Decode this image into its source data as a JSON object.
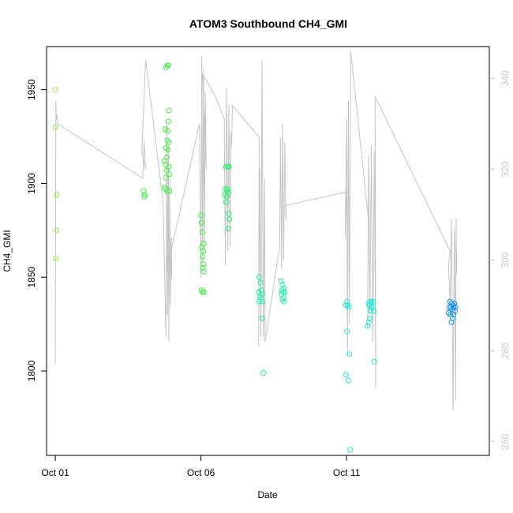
{
  "chart_data": {
    "type": "scatter",
    "title": "ATOM3 Southbound CH4_GMI",
    "xlabel": "Date",
    "ylabel": "CH4_GMI",
    "ylabel_right": "",
    "xlim": [
      -0.3,
      14.9
    ],
    "ylim": [
      1755,
      1973
    ],
    "ylim_right": [
      257,
      347
    ],
    "x_ticks": [
      {
        "value": 0,
        "label": "Oct 01"
      },
      {
        "value": 5,
        "label": "Oct 06"
      },
      {
        "value": 10,
        "label": "Oct 11"
      }
    ],
    "y_ticks": [
      {
        "value": 1800,
        "label": "1800"
      },
      {
        "value": 1850,
        "label": "1850"
      },
      {
        "value": 1900,
        "label": "1900"
      },
      {
        "value": 1950,
        "label": "1950"
      }
    ],
    "y_ticks_right": [
      {
        "value": 260,
        "label": "260"
      },
      {
        "value": 280,
        "label": "280"
      },
      {
        "value": 300,
        "label": "300"
      },
      {
        "value": 320,
        "label": "320"
      },
      {
        "value": 340,
        "label": "340"
      }
    ],
    "grid": false,
    "legend": "none",
    "colors": {
      "line": "#c4c4c4",
      "day1": "#8fef3a",
      "day2": "#3ef03e",
      "day3": "#2cf06a",
      "day4": "#20f0a8",
      "day5": "#1ee8d8",
      "day6": "#1ab8f0",
      "day7": "#1a90f0"
    },
    "points": [
      {
        "x": 0.0,
        "y": 1950,
        "c": "day1"
      },
      {
        "x": 0.0,
        "y": 1930,
        "c": "day1"
      },
      {
        "x": 0.05,
        "y": 1894,
        "c": "day1"
      },
      {
        "x": 0.03,
        "y": 1875,
        "c": "day1"
      },
      {
        "x": 0.02,
        "y": 1860,
        "c": "day1"
      },
      {
        "x": 3.03,
        "y": 1896,
        "c": "day2"
      },
      {
        "x": 3.06,
        "y": 1893,
        "c": "day2"
      },
      {
        "x": 3.08,
        "y": 1894,
        "c": "day2"
      },
      {
        "x": 3.8,
        "y": 1962,
        "c": "day2"
      },
      {
        "x": 3.85,
        "y": 1963,
        "c": "day2"
      },
      {
        "x": 3.88,
        "y": 1963,
        "c": "day2"
      },
      {
        "x": 3.9,
        "y": 1939,
        "c": "day2"
      },
      {
        "x": 3.88,
        "y": 1933,
        "c": "day2"
      },
      {
        "x": 3.78,
        "y": 1929,
        "c": "day2"
      },
      {
        "x": 3.86,
        "y": 1928,
        "c": "day2"
      },
      {
        "x": 3.84,
        "y": 1923,
        "c": "day2"
      },
      {
        "x": 3.9,
        "y": 1922,
        "c": "day2"
      },
      {
        "x": 3.8,
        "y": 1919,
        "c": "day2"
      },
      {
        "x": 3.87,
        "y": 1918,
        "c": "day2"
      },
      {
        "x": 3.82,
        "y": 1914,
        "c": "day2"
      },
      {
        "x": 3.74,
        "y": 1912,
        "c": "day2"
      },
      {
        "x": 3.79,
        "y": 1910,
        "c": "day2"
      },
      {
        "x": 3.9,
        "y": 1909,
        "c": "day2"
      },
      {
        "x": 3.83,
        "y": 1907,
        "c": "day2"
      },
      {
        "x": 3.91,
        "y": 1905,
        "c": "day2"
      },
      {
        "x": 3.8,
        "y": 1903,
        "c": "day2"
      },
      {
        "x": 3.76,
        "y": 1898,
        "c": "day2"
      },
      {
        "x": 3.84,
        "y": 1896,
        "c": "day2"
      },
      {
        "x": 3.92,
        "y": 1896,
        "c": "day2"
      },
      {
        "x": 3.78,
        "y": 1897,
        "c": "day2"
      },
      {
        "x": 5.0,
        "y": 1883,
        "c": "day2"
      },
      {
        "x": 5.02,
        "y": 1879,
        "c": "day2"
      },
      {
        "x": 5.05,
        "y": 1874,
        "c": "day2"
      },
      {
        "x": 5.1,
        "y": 1868,
        "c": "day2"
      },
      {
        "x": 5.08,
        "y": 1864,
        "c": "day2"
      },
      {
        "x": 5.03,
        "y": 1866,
        "c": "day2"
      },
      {
        "x": 5.06,
        "y": 1861,
        "c": "day2"
      },
      {
        "x": 5.09,
        "y": 1857,
        "c": "day2"
      },
      {
        "x": 5.1,
        "y": 1853,
        "c": "day2"
      },
      {
        "x": 5.07,
        "y": 1855,
        "c": "day2"
      },
      {
        "x": 5.02,
        "y": 1843,
        "c": "day2"
      },
      {
        "x": 5.06,
        "y": 1842,
        "c": "day2"
      },
      {
        "x": 5.1,
        "y": 1842,
        "c": "day2"
      },
      {
        "x": 5.86,
        "y": 1909,
        "c": "day3"
      },
      {
        "x": 5.92,
        "y": 1909,
        "c": "day3"
      },
      {
        "x": 5.96,
        "y": 1909,
        "c": "day3"
      },
      {
        "x": 5.84,
        "y": 1897,
        "c": "day3"
      },
      {
        "x": 5.9,
        "y": 1896,
        "c": "day3"
      },
      {
        "x": 5.95,
        "y": 1895,
        "c": "day3"
      },
      {
        "x": 5.82,
        "y": 1894,
        "c": "day3"
      },
      {
        "x": 5.88,
        "y": 1893,
        "c": "day3"
      },
      {
        "x": 5.92,
        "y": 1897,
        "c": "day3"
      },
      {
        "x": 5.86,
        "y": 1890,
        "c": "day3"
      },
      {
        "x": 5.96,
        "y": 1884,
        "c": "day3"
      },
      {
        "x": 5.98,
        "y": 1881,
        "c": "day3"
      },
      {
        "x": 5.94,
        "y": 1876,
        "c": "day3"
      },
      {
        "x": 7.0,
        "y": 1850,
        "c": "day4"
      },
      {
        "x": 7.04,
        "y": 1847,
        "c": "day4"
      },
      {
        "x": 7.08,
        "y": 1843,
        "c": "day4"
      },
      {
        "x": 6.98,
        "y": 1842,
        "c": "day4"
      },
      {
        "x": 7.02,
        "y": 1840,
        "c": "day4"
      },
      {
        "x": 7.1,
        "y": 1841,
        "c": "day4"
      },
      {
        "x": 7.06,
        "y": 1838,
        "c": "day4"
      },
      {
        "x": 7.0,
        "y": 1837,
        "c": "day4"
      },
      {
        "x": 7.12,
        "y": 1837,
        "c": "day4"
      },
      {
        "x": 7.1,
        "y": 1828,
        "c": "day4"
      },
      {
        "x": 7.14,
        "y": 1799,
        "c": "day4"
      },
      {
        "x": 7.75,
        "y": 1848,
        "c": "day4"
      },
      {
        "x": 7.8,
        "y": 1846,
        "c": "day4"
      },
      {
        "x": 7.85,
        "y": 1844,
        "c": "day4"
      },
      {
        "x": 7.78,
        "y": 1843,
        "c": "day4"
      },
      {
        "x": 7.82,
        "y": 1842,
        "c": "day4"
      },
      {
        "x": 7.88,
        "y": 1842,
        "c": "day4"
      },
      {
        "x": 7.76,
        "y": 1841,
        "c": "day4"
      },
      {
        "x": 7.84,
        "y": 1839,
        "c": "day4"
      },
      {
        "x": 7.8,
        "y": 1838,
        "c": "day4"
      },
      {
        "x": 7.86,
        "y": 1837,
        "c": "day4"
      },
      {
        "x": 10.0,
        "y": 1837,
        "c": "day5"
      },
      {
        "x": 10.04,
        "y": 1835,
        "c": "day5"
      },
      {
        "x": 10.08,
        "y": 1834,
        "c": "day5"
      },
      {
        "x": 9.98,
        "y": 1835,
        "c": "day5"
      },
      {
        "x": 10.02,
        "y": 1821,
        "c": "day5"
      },
      {
        "x": 10.1,
        "y": 1809,
        "c": "day5"
      },
      {
        "x": 9.98,
        "y": 1798,
        "c": "day5"
      },
      {
        "x": 10.06,
        "y": 1795,
        "c": "day5"
      },
      {
        "x": 10.12,
        "y": 1758,
        "c": "day5"
      },
      {
        "x": 10.75,
        "y": 1836,
        "c": "day5"
      },
      {
        "x": 10.8,
        "y": 1837,
        "c": "day5"
      },
      {
        "x": 10.86,
        "y": 1837,
        "c": "day5"
      },
      {
        "x": 10.92,
        "y": 1837,
        "c": "day5"
      },
      {
        "x": 10.78,
        "y": 1835,
        "c": "day5"
      },
      {
        "x": 10.84,
        "y": 1834,
        "c": "day5"
      },
      {
        "x": 10.9,
        "y": 1834,
        "c": "day5"
      },
      {
        "x": 10.82,
        "y": 1832,
        "c": "day5"
      },
      {
        "x": 10.94,
        "y": 1832,
        "c": "day5"
      },
      {
        "x": 10.8,
        "y": 1828,
        "c": "day5"
      },
      {
        "x": 10.76,
        "y": 1826,
        "c": "day5"
      },
      {
        "x": 10.72,
        "y": 1824,
        "c": "day5"
      },
      {
        "x": 10.95,
        "y": 1805,
        "c": "day5"
      },
      {
        "x": 13.55,
        "y": 1837,
        "c": "day7"
      },
      {
        "x": 13.6,
        "y": 1836,
        "c": "day7"
      },
      {
        "x": 13.65,
        "y": 1835,
        "c": "day7"
      },
      {
        "x": 13.7,
        "y": 1836,
        "c": "day7"
      },
      {
        "x": 13.52,
        "y": 1834,
        "c": "day7"
      },
      {
        "x": 13.58,
        "y": 1834,
        "c": "day7"
      },
      {
        "x": 13.62,
        "y": 1833,
        "c": "day7"
      },
      {
        "x": 13.68,
        "y": 1834,
        "c": "day7"
      },
      {
        "x": 13.74,
        "y": 1834,
        "c": "day7"
      },
      {
        "x": 13.5,
        "y": 1831,
        "c": "day7"
      },
      {
        "x": 13.56,
        "y": 1830,
        "c": "day7"
      },
      {
        "x": 13.66,
        "y": 1830,
        "c": "day7"
      },
      {
        "x": 13.72,
        "y": 1832,
        "c": "day7"
      },
      {
        "x": 13.6,
        "y": 1826,
        "c": "day7"
      },
      {
        "x": 13.64,
        "y": 1828,
        "c": "day6"
      }
    ],
    "line_series": {
      "name": "",
      "axis": "right",
      "points": [
        [
          0.0,
          277
        ],
        [
          0.02,
          335
        ],
        [
          0.04,
          331
        ],
        [
          0.06,
          332
        ],
        [
          0.08,
          330
        ],
        [
          3.0,
          318
        ],
        [
          3.05,
          326
        ],
        [
          3.1,
          320
        ],
        [
          2.97,
          324
        ],
        [
          3.1,
          344
        ],
        [
          3.7,
          313
        ],
        [
          3.8,
          283
        ],
        [
          3.83,
          330
        ],
        [
          3.86,
          288
        ],
        [
          3.88,
          325
        ],
        [
          3.9,
          282
        ],
        [
          3.93,
          318
        ],
        [
          3.95,
          290
        ],
        [
          3.98,
          305
        ],
        [
          4.0,
          296
        ],
        [
          3.92,
          306
        ],
        [
          3.85,
          302
        ],
        [
          3.8,
          297
        ],
        [
          4.95,
          330
        ],
        [
          5.0,
          296
        ],
        [
          5.03,
          345
        ],
        [
          5.06,
          299
        ],
        [
          5.09,
          342
        ],
        [
          5.12,
          302
        ],
        [
          5.15,
          337
        ],
        [
          5.18,
          320
        ],
        [
          5.05,
          341
        ],
        [
          5.5,
          336
        ],
        [
          5.8,
          331
        ],
        [
          5.84,
          299
        ],
        [
          5.88,
          338
        ],
        [
          5.92,
          302
        ],
        [
          5.96,
          334
        ],
        [
          6.0,
          303
        ],
        [
          6.03,
          328
        ],
        [
          6.05,
          325
        ],
        [
          6.08,
          334
        ],
        [
          7.0,
          327
        ],
        [
          6.98,
          281
        ],
        [
          7.02,
          320
        ],
        [
          7.06,
          283
        ],
        [
          7.1,
          344
        ],
        [
          7.14,
          283
        ],
        [
          7.18,
          318
        ],
        [
          7.2,
          290
        ],
        [
          7.2,
          282
        ],
        [
          7.7,
          303
        ],
        [
          7.73,
          327
        ],
        [
          7.77,
          298
        ],
        [
          7.8,
          330
        ],
        [
          7.84,
          300
        ],
        [
          7.88,
          326
        ],
        [
          7.92,
          309
        ],
        [
          7.9,
          312
        ],
        [
          10.0,
          315
        ],
        [
          9.95,
          305
        ],
        [
          10.0,
          331
        ],
        [
          10.03,
          279
        ],
        [
          10.06,
          335
        ],
        [
          10.1,
          286
        ],
        [
          10.14,
          346
        ],
        [
          10.14,
          346
        ],
        [
          10.75,
          309
        ],
        [
          10.72,
          285
        ],
        [
          10.76,
          323
        ],
        [
          10.8,
          288
        ],
        [
          10.85,
          325
        ],
        [
          10.9,
          282
        ],
        [
          10.95,
          324
        ],
        [
          11.0,
          272
        ],
        [
          10.98,
          336
        ],
        [
          13.55,
          302
        ],
        [
          13.5,
          299
        ],
        [
          13.55,
          290
        ],
        [
          13.6,
          309
        ],
        [
          13.65,
          267
        ],
        [
          13.7,
          307
        ],
        [
          13.74,
          269
        ],
        [
          13.76,
          309
        ],
        [
          13.78,
          297
        ]
      ]
    }
  }
}
